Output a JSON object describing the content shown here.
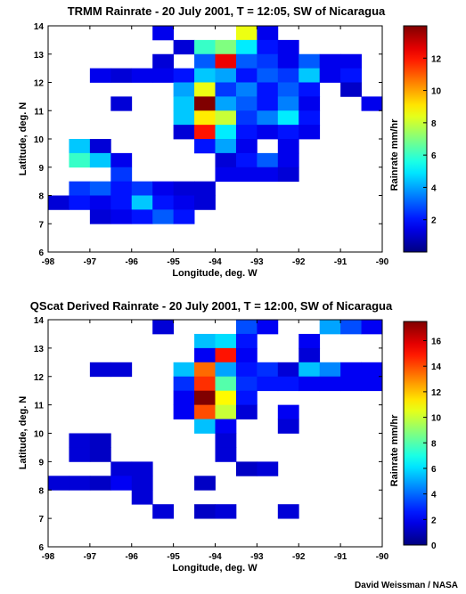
{
  "credit": "David Weissman / NASA",
  "chart_data": [
    {
      "type": "heatmap",
      "title": "TRMM Rainrate - 20 July 2001, T = 12:05, SW of Nicaragua",
      "xlabel": "Longitude, deg. W",
      "ylabel": "Latitude, deg. N",
      "colorbar_label": "Rainrate mm/hr",
      "xlim": [
        -98,
        -90
      ],
      "ylim": [
        6,
        14
      ],
      "xticks": [
        -98,
        -97,
        -96,
        -95,
        -94,
        -93,
        -92,
        -91,
        -90
      ],
      "yticks": [
        6,
        7,
        8,
        9,
        10,
        11,
        12,
        13,
        14
      ],
      "clim": [
        0,
        14
      ],
      "cbticks": [
        2,
        4,
        6,
        8,
        10,
        12
      ],
      "cell_size_deg": 0.5,
      "cells": [
        {
          "lon": -95.25,
          "lat": 13.75,
          "value": 1.5
        },
        {
          "lon": -93.25,
          "lat": 13.75,
          "value": 8.5
        },
        {
          "lon": -92.75,
          "lat": 13.75,
          "value": 1.5
        },
        {
          "lon": -94.75,
          "lat": 13.25,
          "value": 1.2
        },
        {
          "lon": -94.25,
          "lat": 13.25,
          "value": 6.0
        },
        {
          "lon": -93.75,
          "lat": 13.25,
          "value": 7.0
        },
        {
          "lon": -93.25,
          "lat": 13.25,
          "value": 5.0
        },
        {
          "lon": -92.75,
          "lat": 13.25,
          "value": 2.0
        },
        {
          "lon": -92.25,
          "lat": 13.25,
          "value": 1.5
        },
        {
          "lon": -95.25,
          "lat": 12.75,
          "value": 1.2
        },
        {
          "lon": -94.25,
          "lat": 12.75,
          "value": 3.0
        },
        {
          "lon": -93.75,
          "lat": 12.75,
          "value": 12.5
        },
        {
          "lon": -93.25,
          "lat": 12.75,
          "value": 3.0
        },
        {
          "lon": -92.75,
          "lat": 12.75,
          "value": 2.5
        },
        {
          "lon": -92.25,
          "lat": 12.75,
          "value": 1.5
        },
        {
          "lon": -91.75,
          "lat": 12.75,
          "value": 3.0
        },
        {
          "lon": -91.25,
          "lat": 12.75,
          "value": 1.5
        },
        {
          "lon": -90.75,
          "lat": 12.75,
          "value": 1.5
        },
        {
          "lon": -96.75,
          "lat": 12.25,
          "value": 1.5
        },
        {
          "lon": -96.25,
          "lat": 12.25,
          "value": 1.2
        },
        {
          "lon": -95.75,
          "lat": 12.25,
          "value": 1.5
        },
        {
          "lon": -95.25,
          "lat": 12.25,
          "value": 1.5
        },
        {
          "lon": -94.75,
          "lat": 12.25,
          "value": 2.0
        },
        {
          "lon": -94.25,
          "lat": 12.25,
          "value": 4.5
        },
        {
          "lon": -93.75,
          "lat": 12.25,
          "value": 4.0
        },
        {
          "lon": -93.25,
          "lat": 12.25,
          "value": 2.0
        },
        {
          "lon": -92.75,
          "lat": 12.25,
          "value": 3.0
        },
        {
          "lon": -92.25,
          "lat": 12.25,
          "value": 2.5
        },
        {
          "lon": -91.75,
          "lat": 12.25,
          "value": 4.5
        },
        {
          "lon": -91.25,
          "lat": 12.25,
          "value": 1.5
        },
        {
          "lon": -90.75,
          "lat": 12.25,
          "value": 2.0
        },
        {
          "lon": -94.75,
          "lat": 11.75,
          "value": 4.0
        },
        {
          "lon": -94.25,
          "lat": 11.75,
          "value": 8.5
        },
        {
          "lon": -93.75,
          "lat": 11.75,
          "value": 2.5
        },
        {
          "lon": -93.25,
          "lat": 11.75,
          "value": 3.5
        },
        {
          "lon": -92.75,
          "lat": 11.75,
          "value": 2.0
        },
        {
          "lon": -92.25,
          "lat": 11.75,
          "value": 3.0
        },
        {
          "lon": -91.75,
          "lat": 11.75,
          "value": 2.0
        },
        {
          "lon": -90.75,
          "lat": 11.75,
          "value": 1.0
        },
        {
          "lon": -96.25,
          "lat": 11.25,
          "value": 1.2
        },
        {
          "lon": -94.75,
          "lat": 11.25,
          "value": 4.5
        },
        {
          "lon": -94.25,
          "lat": 11.25,
          "value": 14.0
        },
        {
          "lon": -93.75,
          "lat": 11.25,
          "value": 4.0
        },
        {
          "lon": -93.25,
          "lat": 11.25,
          "value": 3.0
        },
        {
          "lon": -92.75,
          "lat": 11.25,
          "value": 2.0
        },
        {
          "lon": -92.25,
          "lat": 11.25,
          "value": 3.5
        },
        {
          "lon": -91.75,
          "lat": 11.25,
          "value": 1.5
        },
        {
          "lon": -90.25,
          "lat": 11.25,
          "value": 1.5
        },
        {
          "lon": -94.75,
          "lat": 10.75,
          "value": 4.5
        },
        {
          "lon": -94.25,
          "lat": 10.75,
          "value": 9.0
        },
        {
          "lon": -93.75,
          "lat": 10.75,
          "value": 8.0
        },
        {
          "lon": -93.25,
          "lat": 10.75,
          "value": 2.5
        },
        {
          "lon": -92.75,
          "lat": 10.75,
          "value": 3.5
        },
        {
          "lon": -92.25,
          "lat": 10.75,
          "value": 5.0
        },
        {
          "lon": -91.75,
          "lat": 10.75,
          "value": 2.0
        },
        {
          "lon": -94.75,
          "lat": 10.25,
          "value": 1.2
        },
        {
          "lon": -94.25,
          "lat": 10.25,
          "value": 12.0
        },
        {
          "lon": -93.75,
          "lat": 10.25,
          "value": 5.0
        },
        {
          "lon": -93.25,
          "lat": 10.25,
          "value": 2.0
        },
        {
          "lon": -92.75,
          "lat": 10.25,
          "value": 1.5
        },
        {
          "lon": -92.25,
          "lat": 10.25,
          "value": 2.0
        },
        {
          "lon": -91.75,
          "lat": 10.25,
          "value": 1.5
        },
        {
          "lon": -97.25,
          "lat": 9.75,
          "value": 4.5
        },
        {
          "lon": -96.75,
          "lat": 9.75,
          "value": 1.2
        },
        {
          "lon": -94.25,
          "lat": 9.75,
          "value": 2.0
        },
        {
          "lon": -93.75,
          "lat": 9.75,
          "value": 4.0
        },
        {
          "lon": -93.25,
          "lat": 9.75,
          "value": 1.5
        },
        {
          "lon": -92.25,
          "lat": 9.75,
          "value": 1.5
        },
        {
          "lon": -97.25,
          "lat": 9.25,
          "value": 6.0
        },
        {
          "lon": -96.75,
          "lat": 9.25,
          "value": 4.5
        },
        {
          "lon": -96.25,
          "lat": 9.25,
          "value": 1.5
        },
        {
          "lon": -93.75,
          "lat": 9.25,
          "value": 1.2
        },
        {
          "lon": -93.25,
          "lat": 9.25,
          "value": 2.0
        },
        {
          "lon": -92.75,
          "lat": 9.25,
          "value": 3.0
        },
        {
          "lon": -92.25,
          "lat": 9.25,
          "value": 1.5
        },
        {
          "lon": -96.25,
          "lat": 8.75,
          "value": 2.5
        },
        {
          "lon": -93.75,
          "lat": 8.75,
          "value": 1.5
        },
        {
          "lon": -93.25,
          "lat": 8.75,
          "value": 1.5
        },
        {
          "lon": -92.75,
          "lat": 8.75,
          "value": 1.5
        },
        {
          "lon": -92.25,
          "lat": 8.75,
          "value": 1.2
        },
        {
          "lon": -97.25,
          "lat": 8.25,
          "value": 2.5
        },
        {
          "lon": -96.75,
          "lat": 8.25,
          "value": 3.0
        },
        {
          "lon": -96.25,
          "lat": 8.25,
          "value": 2.0
        },
        {
          "lon": -95.75,
          "lat": 8.25,
          "value": 2.5
        },
        {
          "lon": -95.25,
          "lat": 8.25,
          "value": 1.5
        },
        {
          "lon": -94.75,
          "lat": 8.25,
          "value": 1.2
        },
        {
          "lon": -94.25,
          "lat": 8.25,
          "value": 1.2
        },
        {
          "lon": -97.75,
          "lat": 7.75,
          "value": 1.2
        },
        {
          "lon": -97.25,
          "lat": 7.75,
          "value": 2.0
        },
        {
          "lon": -96.75,
          "lat": 7.75,
          "value": 1.5
        },
        {
          "lon": -96.25,
          "lat": 7.75,
          "value": 2.0
        },
        {
          "lon": -95.75,
          "lat": 7.75,
          "value": 4.5
        },
        {
          "lon": -95.25,
          "lat": 7.75,
          "value": 2.0
        },
        {
          "lon": -94.75,
          "lat": 7.75,
          "value": 1.5
        },
        {
          "lon": -94.25,
          "lat": 7.75,
          "value": 1.2
        },
        {
          "lon": -96.75,
          "lat": 7.25,
          "value": 1.2
        },
        {
          "lon": -96.25,
          "lat": 7.25,
          "value": 1.5
        },
        {
          "lon": -95.75,
          "lat": 7.25,
          "value": 2.0
        },
        {
          "lon": -95.25,
          "lat": 7.25,
          "value": 3.0
        },
        {
          "lon": -94.75,
          "lat": 7.25,
          "value": 2.0
        }
      ]
    },
    {
      "type": "heatmap",
      "title": "QScat Derived Rainrate - 20 July 2001, T = 12:00, SW of Nicaragua",
      "xlabel": "Longitude, deg. W",
      "ylabel": "Latitude, deg. N",
      "colorbar_label": "Rainrate mm/hr",
      "xlim": [
        -98,
        -90
      ],
      "ylim": [
        6,
        14
      ],
      "xticks": [
        -98,
        -97,
        -96,
        -95,
        -94,
        -93,
        -92,
        -91,
        -90
      ],
      "yticks": [
        6,
        7,
        8,
        9,
        10,
        11,
        12,
        13,
        14
      ],
      "clim": [
        0,
        17.5
      ],
      "cbticks": [
        0,
        2,
        4,
        6,
        8,
        10,
        12,
        14,
        16
      ],
      "cell_size_deg": 0.5,
      "cells": [
        {
          "lon": -95.25,
          "lat": 13.75,
          "value": 1.5
        },
        {
          "lon": -93.25,
          "lat": 13.75,
          "value": 3.5
        },
        {
          "lon": -92.75,
          "lat": 13.75,
          "value": 2.0
        },
        {
          "lon": -91.25,
          "lat": 13.75,
          "value": 5.0
        },
        {
          "lon": -90.75,
          "lat": 13.75,
          "value": 3.5
        },
        {
          "lon": -90.25,
          "lat": 13.75,
          "value": 2.0
        },
        {
          "lon": -94.25,
          "lat": 13.25,
          "value": 5.5
        },
        {
          "lon": -93.75,
          "lat": 13.25,
          "value": 6.0
        },
        {
          "lon": -93.25,
          "lat": 13.25,
          "value": 2.5
        },
        {
          "lon": -91.75,
          "lat": 13.25,
          "value": 2.0
        },
        {
          "lon": -94.25,
          "lat": 12.75,
          "value": 2.0
        },
        {
          "lon": -93.75,
          "lat": 12.75,
          "value": 15.0
        },
        {
          "lon": -93.25,
          "lat": 12.75,
          "value": 2.0
        },
        {
          "lon": -91.75,
          "lat": 12.75,
          "value": 1.5
        },
        {
          "lon": -96.75,
          "lat": 12.25,
          "value": 1.5
        },
        {
          "lon": -96.25,
          "lat": 12.25,
          "value": 1.5
        },
        {
          "lon": -94.75,
          "lat": 12.25,
          "value": 5.5
        },
        {
          "lon": -94.25,
          "lat": 12.25,
          "value": 13.5
        },
        {
          "lon": -93.75,
          "lat": 12.25,
          "value": 5.0
        },
        {
          "lon": -93.25,
          "lat": 12.25,
          "value": 2.5
        },
        {
          "lon": -92.75,
          "lat": 12.25,
          "value": 3.0
        },
        {
          "lon": -92.25,
          "lat": 12.25,
          "value": 1.5
        },
        {
          "lon": -91.75,
          "lat": 12.25,
          "value": 5.5
        },
        {
          "lon": -91.25,
          "lat": 12.25,
          "value": 4.5
        },
        {
          "lon": -90.75,
          "lat": 12.25,
          "value": 2.0
        },
        {
          "lon": -90.25,
          "lat": 12.25,
          "value": 2.0
        },
        {
          "lon": -94.75,
          "lat": 11.75,
          "value": 3.0
        },
        {
          "lon": -94.25,
          "lat": 11.75,
          "value": 14.5
        },
        {
          "lon": -93.75,
          "lat": 11.75,
          "value": 8.0
        },
        {
          "lon": -93.25,
          "lat": 11.75,
          "value": 3.0
        },
        {
          "lon": -92.75,
          "lat": 11.75,
          "value": 2.5
        },
        {
          "lon": -92.25,
          "lat": 11.75,
          "value": 2.5
        },
        {
          "lon": -91.75,
          "lat": 11.75,
          "value": 2.0
        },
        {
          "lon": -91.25,
          "lat": 11.75,
          "value": 2.0
        },
        {
          "lon": -90.75,
          "lat": 11.75,
          "value": 2.0
        },
        {
          "lon": -90.25,
          "lat": 11.75,
          "value": 2.0
        },
        {
          "lon": -94.75,
          "lat": 11.25,
          "value": 2.0
        },
        {
          "lon": -94.25,
          "lat": 11.25,
          "value": 17.5
        },
        {
          "lon": -93.75,
          "lat": 11.25,
          "value": 11.0
        },
        {
          "lon": -93.25,
          "lat": 11.25,
          "value": 2.5
        },
        {
          "lon": -94.75,
          "lat": 10.75,
          "value": 2.0
        },
        {
          "lon": -94.25,
          "lat": 10.75,
          "value": 14.0
        },
        {
          "lon": -93.75,
          "lat": 10.75,
          "value": 10.0
        },
        {
          "lon": -93.25,
          "lat": 10.75,
          "value": 1.5
        },
        {
          "lon": -92.25,
          "lat": 10.75,
          "value": 2.0
        },
        {
          "lon": -94.25,
          "lat": 10.25,
          "value": 5.5
        },
        {
          "lon": -93.75,
          "lat": 10.25,
          "value": 2.0
        },
        {
          "lon": -92.25,
          "lat": 10.25,
          "value": 1.5
        },
        {
          "lon": -97.25,
          "lat": 9.75,
          "value": 1.5
        },
        {
          "lon": -96.75,
          "lat": 9.75,
          "value": 1.2
        },
        {
          "lon": -93.75,
          "lat": 9.75,
          "value": 1.5
        },
        {
          "lon": -97.25,
          "lat": 9.25,
          "value": 1.5
        },
        {
          "lon": -96.75,
          "lat": 9.25,
          "value": 1.2
        },
        {
          "lon": -93.75,
          "lat": 9.25,
          "value": 1.5
        },
        {
          "lon": -96.25,
          "lat": 8.75,
          "value": 1.5
        },
        {
          "lon": -95.75,
          "lat": 8.75,
          "value": 1.5
        },
        {
          "lon": -93.25,
          "lat": 8.75,
          "value": 1.2
        },
        {
          "lon": -92.75,
          "lat": 8.75,
          "value": 1.5
        },
        {
          "lon": -97.75,
          "lat": 8.25,
          "value": 1.5
        },
        {
          "lon": -97.25,
          "lat": 8.25,
          "value": 1.5
        },
        {
          "lon": -96.75,
          "lat": 8.25,
          "value": 1.2
        },
        {
          "lon": -96.25,
          "lat": 8.25,
          "value": 2.0
        },
        {
          "lon": -95.75,
          "lat": 8.25,
          "value": 1.5
        },
        {
          "lon": -94.25,
          "lat": 8.25,
          "value": 1.2
        },
        {
          "lon": -95.75,
          "lat": 7.75,
          "value": 1.5
        },
        {
          "lon": -95.25,
          "lat": 7.25,
          "value": 1.5
        },
        {
          "lon": -94.25,
          "lat": 7.25,
          "value": 1.2
        },
        {
          "lon": -93.75,
          "lat": 7.25,
          "value": 1.5
        },
        {
          "lon": -92.25,
          "lat": 7.25,
          "value": 1.5
        }
      ]
    }
  ]
}
